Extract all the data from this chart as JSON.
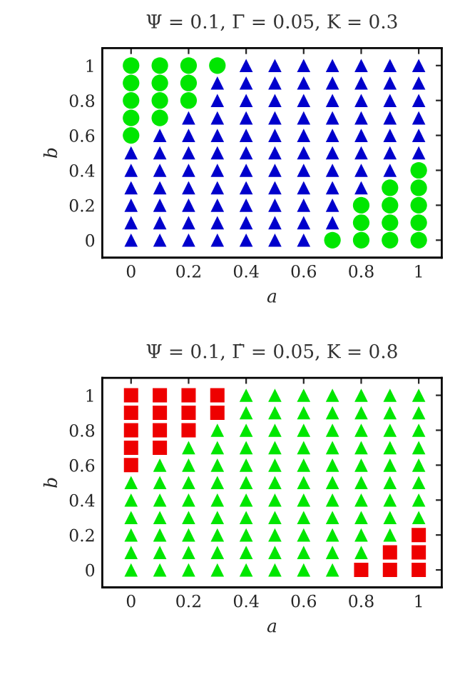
{
  "chart_data": [
    {
      "type": "scatter",
      "title": "Ψ = 0.1, Γ = 0.05, K = 0.3",
      "xlabel": "a",
      "ylabel": "b",
      "xlim": [
        -0.1,
        1.08
      ],
      "ylim": [
        -0.1,
        1.1
      ],
      "xticks": [
        0,
        0.2,
        0.4,
        0.6,
        0.8,
        1
      ],
      "yticks": [
        0,
        0.2,
        0.4,
        0.6,
        0.8,
        1
      ],
      "grid": false,
      "legend": false,
      "series": [
        {
          "color": "#00e600",
          "marker": "circle",
          "x": [
            0,
            0,
            0,
            0,
            0,
            0.1,
            0.1,
            0.1,
            0.1,
            0.2,
            0.2,
            0.2,
            0.3,
            0.7,
            0.8,
            0.8,
            0.8,
            0.9,
            0.9,
            0.9,
            0.9,
            1,
            1,
            1,
            1,
            1
          ],
          "values": [
            0.6,
            0.7,
            0.8,
            0.9,
            1,
            0.7,
            0.8,
            0.9,
            1,
            0.8,
            0.9,
            1,
            1,
            0,
            0,
            0.1,
            0.2,
            0,
            0.1,
            0.2,
            0.3,
            0,
            0.1,
            0.2,
            0.3,
            0.4
          ]
        },
        {
          "color": "#0000cc",
          "marker": "triangle",
          "x": [
            0,
            0,
            0,
            0,
            0,
            0,
            0.1,
            0.1,
            0.1,
            0.1,
            0.1,
            0.1,
            0.1,
            0.2,
            0.2,
            0.2,
            0.2,
            0.2,
            0.2,
            0.2,
            0.2,
            0.3,
            0.3,
            0.3,
            0.3,
            0.3,
            0.3,
            0.3,
            0.3,
            0.3,
            0.3,
            0.4,
            0.4,
            0.4,
            0.4,
            0.4,
            0.4,
            0.4,
            0.4,
            0.4,
            0.4,
            0.4,
            0.5,
            0.5,
            0.5,
            0.5,
            0.5,
            0.5,
            0.5,
            0.5,
            0.5,
            0.5,
            0.5,
            0.6,
            0.6,
            0.6,
            0.6,
            0.6,
            0.6,
            0.6,
            0.6,
            0.6,
            0.6,
            0.6,
            0.7,
            0.7,
            0.7,
            0.7,
            0.7,
            0.7,
            0.7,
            0.7,
            0.7,
            0.7,
            0.8,
            0.8,
            0.8,
            0.8,
            0.8,
            0.8,
            0.8,
            0.8,
            0.9,
            0.9,
            0.9,
            0.9,
            0.9,
            0.9,
            0.9,
            1,
            1,
            1,
            1,
            1,
            1
          ],
          "values": [
            0,
            0.1,
            0.2,
            0.3,
            0.4,
            0.5,
            0,
            0.1,
            0.2,
            0.3,
            0.4,
            0.5,
            0.6,
            0,
            0.1,
            0.2,
            0.3,
            0.4,
            0.5,
            0.6,
            0.7,
            0,
            0.1,
            0.2,
            0.3,
            0.4,
            0.5,
            0.6,
            0.7,
            0.8,
            0.9,
            0,
            0.1,
            0.2,
            0.3,
            0.4,
            0.5,
            0.6,
            0.7,
            0.8,
            0.9,
            1,
            0,
            0.1,
            0.2,
            0.3,
            0.4,
            0.5,
            0.6,
            0.7,
            0.8,
            0.9,
            1,
            0,
            0.1,
            0.2,
            0.3,
            0.4,
            0.5,
            0.6,
            0.7,
            0.8,
            0.9,
            1,
            0.1,
            0.2,
            0.3,
            0.4,
            0.5,
            0.6,
            0.7,
            0.8,
            0.9,
            1,
            0.3,
            0.4,
            0.5,
            0.6,
            0.7,
            0.8,
            0.9,
            1,
            0.4,
            0.5,
            0.6,
            0.7,
            0.8,
            0.9,
            1,
            0.5,
            0.6,
            0.7,
            0.8,
            0.9,
            1
          ]
        }
      ]
    },
    {
      "type": "scatter",
      "title": "Ψ = 0.1, Γ̇ = 0.05, K = 0.8",
      "xlabel": "a",
      "ylabel": "b",
      "xlim": [
        -0.1,
        1.08
      ],
      "ylim": [
        -0.1,
        1.1
      ],
      "xticks": [
        0,
        0.2,
        0.4,
        0.6,
        0.8,
        1
      ],
      "yticks": [
        0,
        0.2,
        0.4,
        0.6,
        0.8,
        1
      ],
      "grid": false,
      "legend": false,
      "series": [
        {
          "color": "#ee0000",
          "marker": "square",
          "x": [
            0,
            0,
            0,
            0,
            0,
            0.1,
            0.1,
            0.1,
            0.1,
            0.2,
            0.2,
            0.2,
            0.3,
            0.3,
            0.8,
            0.9,
            0.9,
            1,
            1,
            1
          ],
          "values": [
            0.6,
            0.7,
            0.8,
            0.9,
            1,
            0.7,
            0.8,
            0.9,
            1,
            0.8,
            0.9,
            1,
            0.9,
            1,
            0,
            0,
            0.1,
            0,
            0.1,
            0.2
          ]
        },
        {
          "color": "#00e600",
          "marker": "triangle",
          "x": [
            0,
            0,
            0,
            0,
            0,
            0,
            0.1,
            0.1,
            0.1,
            0.1,
            0.1,
            0.1,
            0.1,
            0.2,
            0.2,
            0.2,
            0.2,
            0.2,
            0.2,
            0.2,
            0.2,
            0.3,
            0.3,
            0.3,
            0.3,
            0.3,
            0.3,
            0.3,
            0.3,
            0.3,
            0.4,
            0.4,
            0.4,
            0.4,
            0.4,
            0.4,
            0.4,
            0.4,
            0.4,
            0.4,
            0.4,
            0.5,
            0.5,
            0.5,
            0.5,
            0.5,
            0.5,
            0.5,
            0.5,
            0.5,
            0.5,
            0.5,
            0.6,
            0.6,
            0.6,
            0.6,
            0.6,
            0.6,
            0.6,
            0.6,
            0.6,
            0.6,
            0.6,
            0.7,
            0.7,
            0.7,
            0.7,
            0.7,
            0.7,
            0.7,
            0.7,
            0.7,
            0.7,
            0.7,
            0.8,
            0.8,
            0.8,
            0.8,
            0.8,
            0.8,
            0.8,
            0.8,
            0.8,
            0.8,
            0.9,
            0.9,
            0.9,
            0.9,
            0.9,
            0.9,
            0.9,
            0.9,
            0.9,
            1,
            1,
            1,
            1,
            1,
            1,
            1,
            1
          ],
          "values": [
            0,
            0.1,
            0.2,
            0.3,
            0.4,
            0.5,
            0,
            0.1,
            0.2,
            0.3,
            0.4,
            0.5,
            0.6,
            0,
            0.1,
            0.2,
            0.3,
            0.4,
            0.5,
            0.6,
            0.7,
            0,
            0.1,
            0.2,
            0.3,
            0.4,
            0.5,
            0.6,
            0.7,
            0.8,
            0,
            0.1,
            0.2,
            0.3,
            0.4,
            0.5,
            0.6,
            0.7,
            0.8,
            0.9,
            1,
            0,
            0.1,
            0.2,
            0.3,
            0.4,
            0.5,
            0.6,
            0.7,
            0.8,
            0.9,
            1,
            0,
            0.1,
            0.2,
            0.3,
            0.4,
            0.5,
            0.6,
            0.7,
            0.8,
            0.9,
            1,
            0,
            0.1,
            0.2,
            0.3,
            0.4,
            0.5,
            0.6,
            0.7,
            0.8,
            0.9,
            1,
            0.1,
            0.2,
            0.3,
            0.4,
            0.5,
            0.6,
            0.7,
            0.8,
            0.9,
            1,
            0.2,
            0.3,
            0.4,
            0.5,
            0.6,
            0.7,
            0.8,
            0.9,
            1,
            0.3,
            0.4,
            0.5,
            0.6,
            0.7,
            0.8,
            0.9,
            1
          ]
        }
      ]
    }
  ]
}
